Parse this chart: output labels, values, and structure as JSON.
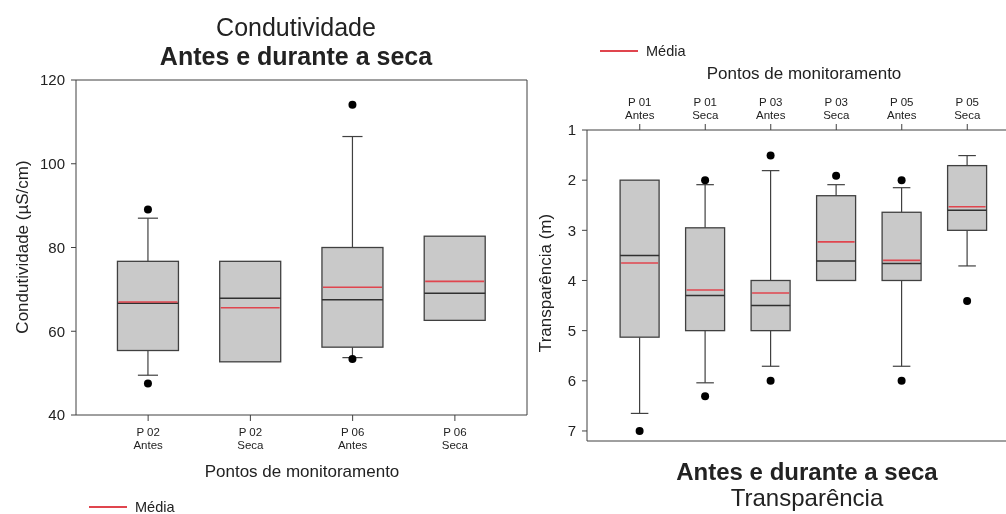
{
  "chart_data": [
    {
      "type": "box",
      "title": "Condutividade",
      "subtitle": "Antes e durante a seca",
      "xlabel": "Pontos de monitoramento",
      "ylabel": "Condutividade (µS/cm)",
      "categories": [
        "P 02 Antes",
        "P 02 Seca",
        "P 06 Antes",
        "P 06 Seca"
      ],
      "series": [
        {
          "name": "Média",
          "color": "#e0454e",
          "colors": [
            "#c9c9c9",
            "#c9c9c9",
            "#c9c9c9",
            "#c9c9c9"
          ],
          "boxes": [
            {
              "low": 49.5,
              "q1": 55.4,
              "median": 66.7,
              "q3": 76.7,
              "high": 87,
              "mean": 67,
              "outliers": [
                89.1,
                47.5
              ]
            },
            {
              "low": 52.7,
              "q1": 52.7,
              "median": 67.9,
              "q3": 76.7,
              "high": 76.7,
              "mean": 65.6
            },
            {
              "low": 53.7,
              "q1": 56.2,
              "median": 67.5,
              "q3": 80,
              "high": 106.5,
              "mean": 70.5,
              "outliers": [
                114.1,
                53.4
              ]
            },
            {
              "low": 62.6,
              "q1": 62.6,
              "median": 69.1,
              "q3": 82.7,
              "high": 82.7,
              "mean": 71.9
            }
          ]
        }
      ],
      "ylim": [
        40,
        120
      ],
      "yticks": [
        40,
        60,
        80,
        100,
        120
      ],
      "legend": "bottom left"
    },
    {
      "type": "box",
      "title": "Transparência",
      "subtitle": "Antes e durante a seca",
      "xlabel": "Pontos de monitoramento",
      "ylabel": "Transparência (m)",
      "categories": [
        "P 01 Antes",
        "P 01 Seca",
        "P 03 Antes",
        "P 03 Seca",
        "P 05 Antes",
        "P 05 Seca"
      ],
      "series": [
        {
          "name": "Média",
          "color": "#e0454e",
          "colors": [
            "#c9c9c9",
            "#c9c9c9",
            "#c9c9c9",
            "#c9c9c9",
            "#c9c9c9",
            "#c9c9c9"
          ],
          "boxes": [
            {
              "low": 2,
              "q1": 2,
              "median": 3.5,
              "q3": 5.13,
              "high": 6.65,
              "mean": 3.65,
              "outliers": [
                7
              ]
            },
            {
              "low": 2.09,
              "q1": 2.95,
              "median": 4.3,
              "q3": 5,
              "high": 6.04,
              "mean": 4.19,
              "outliers": [
                2,
                6.31
              ]
            },
            {
              "low": 1.81,
              "q1": 4,
              "median": 4.5,
              "q3": 5,
              "high": 5.71,
              "mean": 4.25,
              "outliers": [
                1.51,
                6
              ]
            },
            {
              "low": 2.09,
              "q1": 2.31,
              "median": 3.61,
              "q3": 4,
              "high": 4,
              "mean": 3.23,
              "outliers": [
                1.91
              ]
            },
            {
              "low": 2.15,
              "q1": 2.64,
              "median": 3.66,
              "q3": 4,
              "high": 5.71,
              "mean": 3.6,
              "outliers": [
                2,
                6
              ]
            },
            {
              "low": 1.51,
              "q1": 1.71,
              "median": 2.6,
              "q3": 3,
              "high": 3.71,
              "mean": 2.53,
              "outliers": [
                4.41
              ]
            }
          ]
        }
      ],
      "ylim": [
        7.2,
        1
      ],
      "yticks": [
        1,
        2,
        3,
        4,
        5,
        6,
        7
      ],
      "legend": "top left"
    }
  ]
}
